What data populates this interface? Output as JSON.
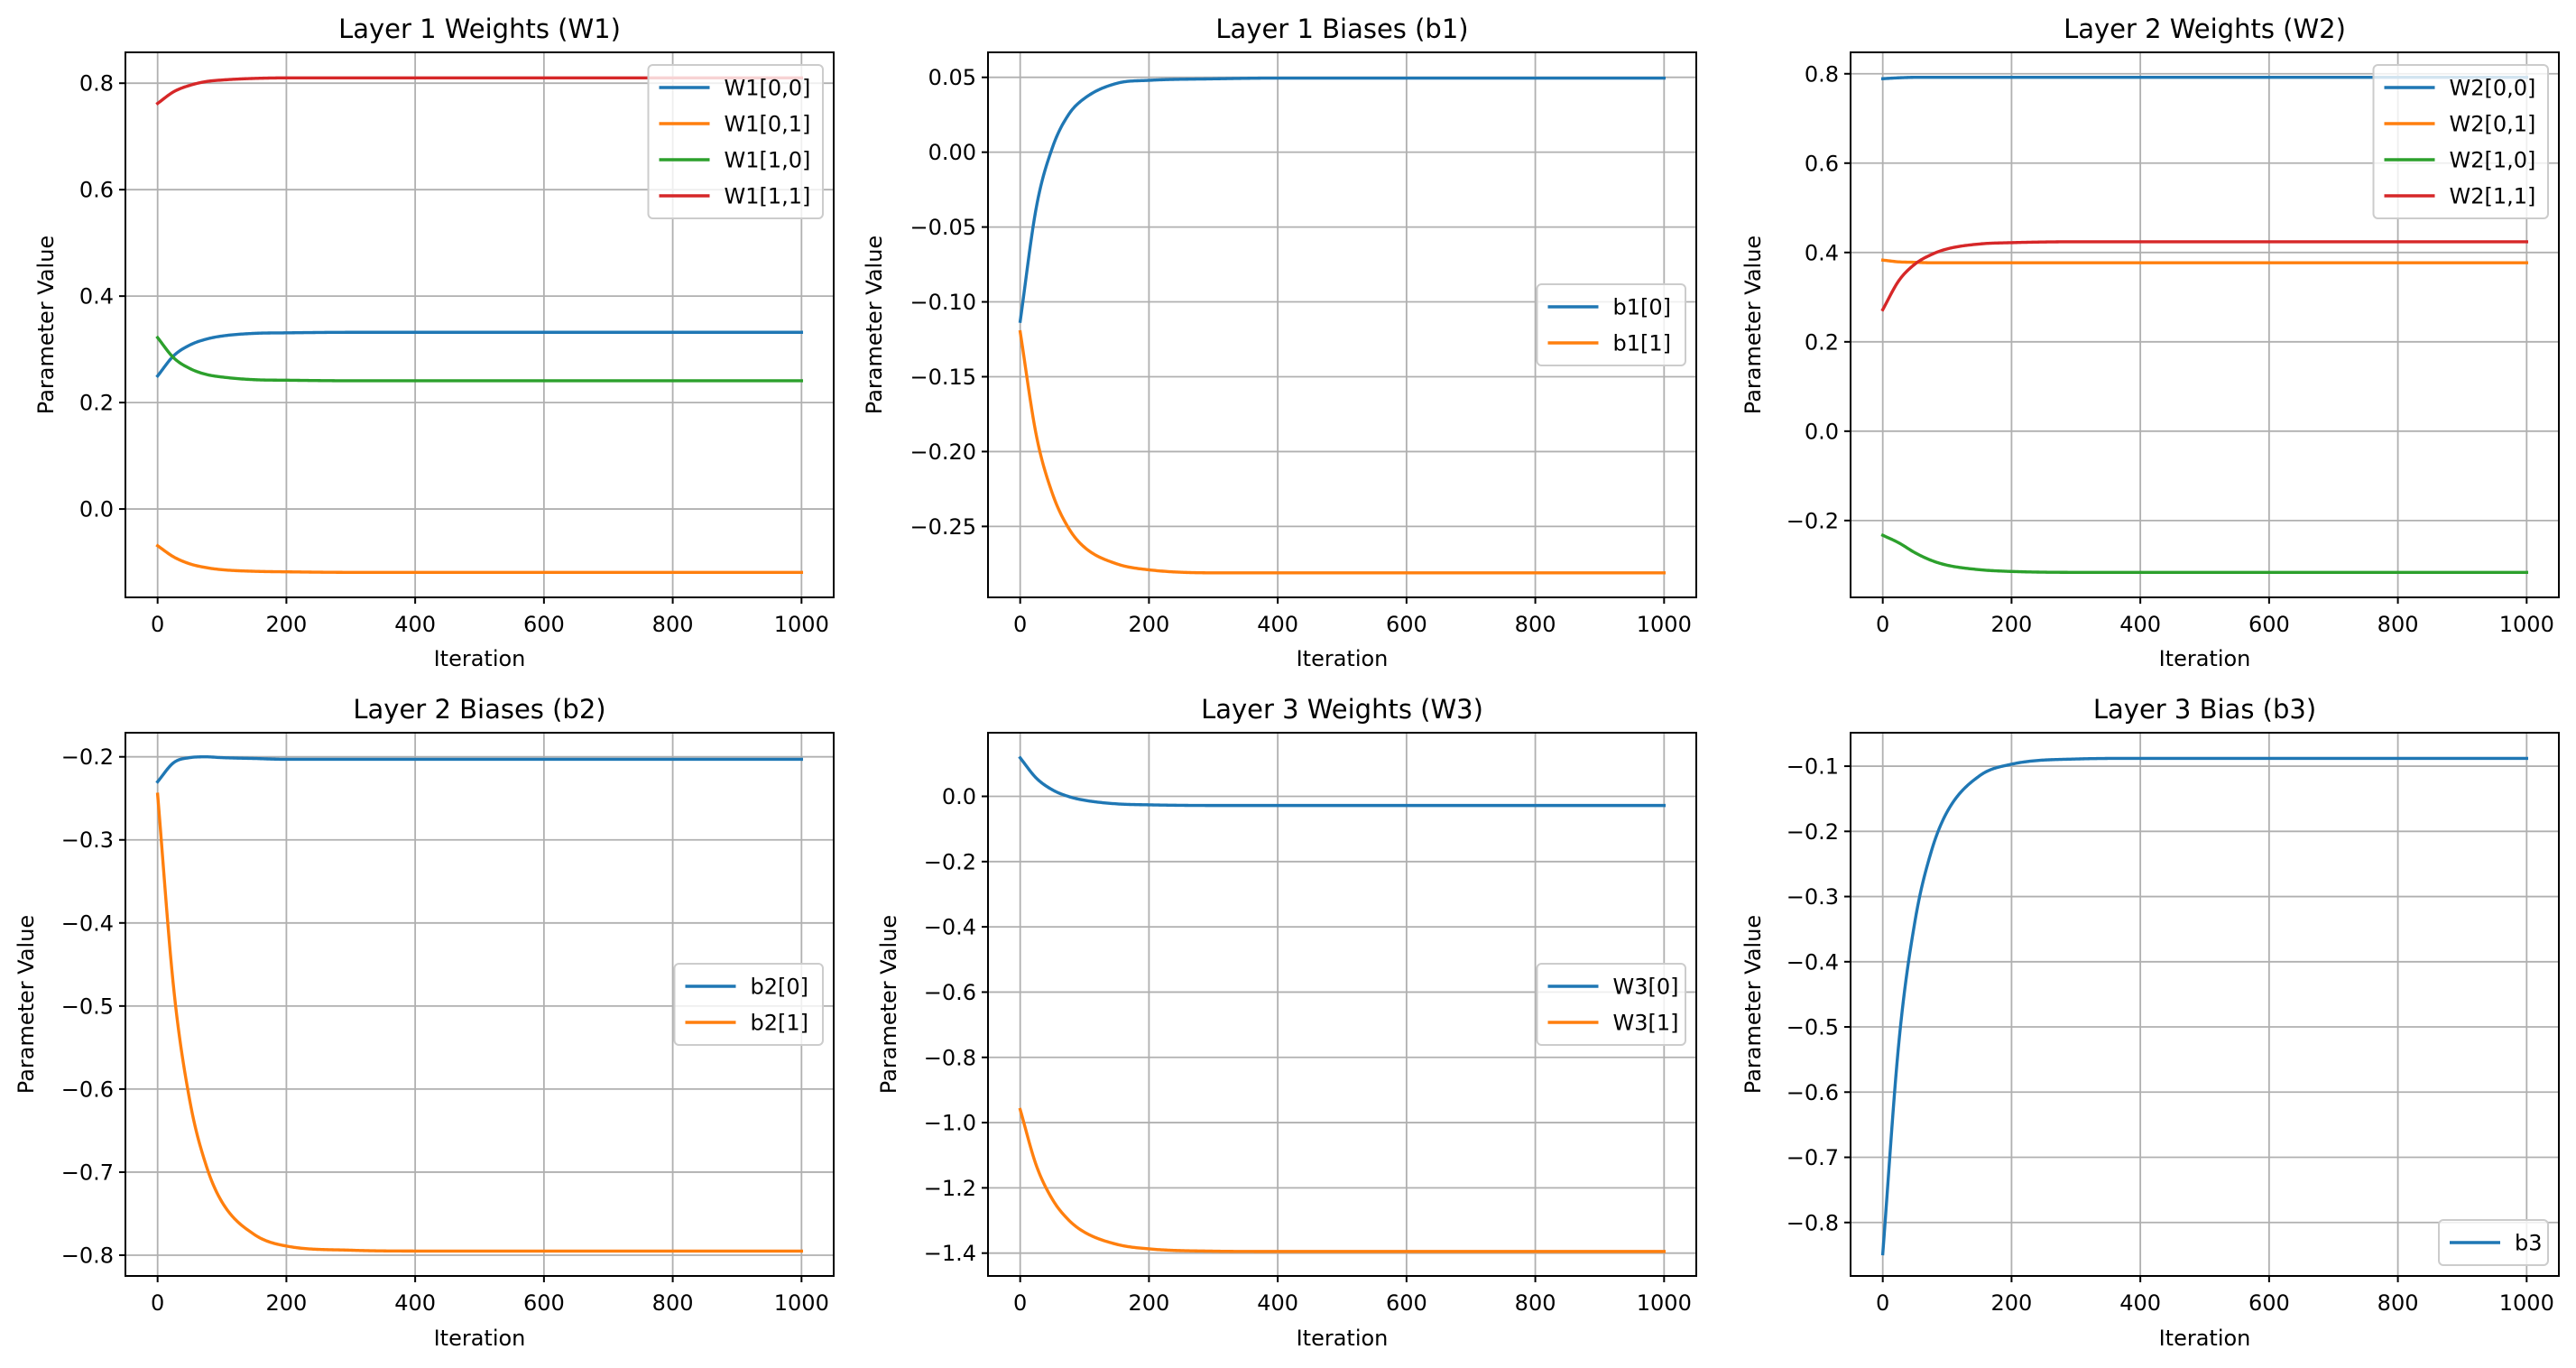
{
  "chart_data": [
    {
      "type": "line",
      "title": "Layer 1 Weights (W1)",
      "xlabel": "Iteration",
      "ylabel": "Parameter Value",
      "xlim": [
        -50,
        1050
      ],
      "ylim": [
        -0.166,
        0.858
      ],
      "xticks": [
        0,
        200,
        400,
        600,
        800,
        1000
      ],
      "xtick_labels": [
        "0",
        "200",
        "400",
        "600",
        "800",
        "1000"
      ],
      "yticks": [
        0.0,
        0.2,
        0.4,
        0.6,
        0.8
      ],
      "ytick_labels": [
        "0.0",
        "0.2",
        "0.4",
        "0.6",
        "0.8"
      ],
      "grid": true,
      "legend_loc": "upper right",
      "x": [
        0,
        25,
        50,
        75,
        100,
        150,
        200,
        300,
        400,
        600,
        800,
        1000
      ],
      "series": [
        {
          "name": "W1[0,0]",
          "color": "#1f77b4",
          "values": [
            0.25,
            0.288,
            0.308,
            0.319,
            0.325,
            0.33,
            0.331,
            0.332,
            0.332,
            0.332,
            0.332,
            0.332
          ]
        },
        {
          "name": "W1[0,1]",
          "color": "#ff7f0e",
          "values": [
            -0.069,
            -0.09,
            -0.103,
            -0.11,
            -0.114,
            -0.117,
            -0.118,
            -0.119,
            -0.119,
            -0.119,
            -0.119,
            -0.119
          ]
        },
        {
          "name": "W1[1,0]",
          "color": "#2ca02c",
          "values": [
            0.322,
            0.284,
            0.264,
            0.253,
            0.248,
            0.243,
            0.242,
            0.241,
            0.241,
            0.241,
            0.241,
            0.241
          ]
        },
        {
          "name": "W1[1,1]",
          "color": "#d62728",
          "values": [
            0.762,
            0.784,
            0.796,
            0.803,
            0.806,
            0.809,
            0.81,
            0.81,
            0.81,
            0.81,
            0.81,
            0.81
          ]
        }
      ]
    },
    {
      "type": "line",
      "title": "Layer 1 Biases (b1)",
      "xlabel": "Iteration",
      "ylabel": "Parameter Value",
      "xlim": [
        -50,
        1050
      ],
      "ylim": [
        -0.2974,
        0.0667
      ],
      "xticks": [
        0,
        200,
        400,
        600,
        800,
        1000
      ],
      "xtick_labels": [
        "0",
        "200",
        "400",
        "600",
        "800",
        "1000"
      ],
      "yticks": [
        -0.25,
        -0.2,
        -0.15,
        -0.1,
        -0.05,
        0.0,
        0.05
      ],
      "ytick_labels": [
        "−0.25",
        "−0.20",
        "−0.15",
        "−0.10",
        "−0.05",
        "0.00",
        "0.05"
      ],
      "grid": true,
      "legend_loc": "center right",
      "x": [
        0,
        25,
        50,
        75,
        100,
        150,
        200,
        300,
        400,
        600,
        800,
        1000
      ],
      "series": [
        {
          "name": "b1[0]",
          "color": "#1f77b4",
          "values": [
            -0.113,
            -0.037,
            0.003,
            0.025,
            0.036,
            0.046,
            0.048,
            0.049,
            0.0495,
            0.0495,
            0.0495,
            0.0495
          ]
        },
        {
          "name": "b1[1]",
          "color": "#ff7f0e",
          "values": [
            -0.12,
            -0.189,
            -0.228,
            -0.251,
            -0.264,
            -0.275,
            -0.279,
            -0.281,
            -0.281,
            -0.281,
            -0.281,
            -0.281
          ]
        }
      ]
    },
    {
      "type": "line",
      "title": "Layer 2 Weights (W2)",
      "xlabel": "Iteration",
      "ylabel": "Parameter Value",
      "xlim": [
        -50,
        1050
      ],
      "ylim": [
        -0.372,
        0.848
      ],
      "xticks": [
        0,
        200,
        400,
        600,
        800,
        1000
      ],
      "xtick_labels": [
        "0",
        "200",
        "400",
        "600",
        "800",
        "1000"
      ],
      "yticks": [
        -0.2,
        0.0,
        0.2,
        0.4,
        0.6,
        0.8
      ],
      "ytick_labels": [
        "−0.2",
        "0.0",
        "0.2",
        "0.4",
        "0.6",
        "0.8"
      ],
      "grid": true,
      "legend_loc": "upper right",
      "x": [
        0,
        25,
        50,
        75,
        100,
        150,
        200,
        300,
        400,
        600,
        800,
        1000
      ],
      "series": [
        {
          "name": "W2[0,0]",
          "color": "#1f77b4",
          "values": [
            0.789,
            0.791,
            0.792,
            0.792,
            0.792,
            0.792,
            0.792,
            0.792,
            0.792,
            0.792,
            0.792,
            0.792
          ]
        },
        {
          "name": "W2[0,1]",
          "color": "#ff7f0e",
          "values": [
            0.383,
            0.379,
            0.378,
            0.377,
            0.377,
            0.377,
            0.377,
            0.377,
            0.377,
            0.377,
            0.377,
            0.377
          ]
        },
        {
          "name": "W2[1,0]",
          "color": "#2ca02c",
          "values": [
            -0.233,
            -0.25,
            -0.272,
            -0.289,
            -0.3,
            -0.31,
            -0.314,
            -0.316,
            -0.316,
            -0.316,
            -0.316,
            -0.316
          ]
        },
        {
          "name": "W2[1,1]",
          "color": "#d62728",
          "values": [
            0.272,
            0.337,
            0.374,
            0.395,
            0.408,
            0.419,
            0.422,
            0.424,
            0.424,
            0.424,
            0.424,
            0.424
          ]
        }
      ]
    },
    {
      "type": "line",
      "title": "Layer 2 Biases (b2)",
      "xlabel": "Iteration",
      "ylabel": "Parameter Value",
      "xlim": [
        -50,
        1050
      ],
      "ylim": [
        -0.825,
        -0.171
      ],
      "xticks": [
        0,
        200,
        400,
        600,
        800,
        1000
      ],
      "xtick_labels": [
        "0",
        "200",
        "400",
        "600",
        "800",
        "1000"
      ],
      "yticks": [
        -0.8,
        -0.7,
        -0.6,
        -0.5,
        -0.4,
        -0.3,
        -0.2
      ],
      "ytick_labels": [
        "−0.8",
        "−0.7",
        "−0.6",
        "−0.5",
        "−0.4",
        "−0.3",
        "−0.2"
      ],
      "grid": true,
      "legend_loc": "center right",
      "x": [
        0,
        25,
        50,
        75,
        100,
        150,
        200,
        300,
        400,
        600,
        800,
        1000
      ],
      "series": [
        {
          "name": "b2[0]",
          "color": "#1f77b4",
          "values": [
            -0.23,
            -0.207,
            -0.201,
            -0.2,
            -0.201,
            -0.202,
            -0.203,
            -0.203,
            -0.203,
            -0.203,
            -0.203,
            -0.203
          ]
        },
        {
          "name": "b2[1]",
          "color": "#ff7f0e",
          "values": [
            -0.245,
            -0.479,
            -0.614,
            -0.691,
            -0.736,
            -0.775,
            -0.789,
            -0.794,
            -0.795,
            -0.795,
            -0.795,
            -0.795
          ]
        }
      ]
    },
    {
      "type": "line",
      "title": "Layer 3 Weights (W3)",
      "xlabel": "Iteration",
      "ylabel": "Parameter Value",
      "xlim": [
        -50,
        1050
      ],
      "ylim": [
        -1.47,
        0.195
      ],
      "xticks": [
        0,
        200,
        400,
        600,
        800,
        1000
      ],
      "xtick_labels": [
        "0",
        "200",
        "400",
        "600",
        "800",
        "1000"
      ],
      "yticks": [
        -1.4,
        -1.2,
        -1.0,
        -0.8,
        -0.6,
        -0.4,
        -0.2,
        0.0
      ],
      "ytick_labels": [
        "−1.4",
        "−1.2",
        "−1.0",
        "−0.8",
        "−0.6",
        "−0.4",
        "−0.2",
        "0.0"
      ],
      "grid": true,
      "legend_loc": "center right",
      "x": [
        0,
        25,
        50,
        75,
        100,
        150,
        200,
        300,
        400,
        600,
        800,
        1000
      ],
      "series": [
        {
          "name": "W3[0]",
          "color": "#1f77b4",
          "values": [
            0.118,
            0.056,
            0.02,
            -0.0004,
            -0.012,
            -0.023,
            -0.026,
            -0.028,
            -0.028,
            -0.028,
            -0.028,
            -0.028
          ]
        },
        {
          "name": "W3[1]",
          "color": "#ff7f0e",
          "values": [
            -0.96,
            -1.131,
            -1.235,
            -1.298,
            -1.336,
            -1.373,
            -1.387,
            -1.394,
            -1.395,
            -1.395,
            -1.395,
            -1.395
          ]
        }
      ]
    },
    {
      "type": "line",
      "title": "Layer 3 Bias (b3)",
      "xlabel": "Iteration",
      "ylabel": "Parameter Value",
      "xlim": [
        -50,
        1050
      ],
      "ylim": [
        -0.882,
        -0.0487
      ],
      "xticks": [
        0,
        200,
        400,
        600,
        800,
        1000
      ],
      "xtick_labels": [
        "0",
        "200",
        "400",
        "600",
        "800",
        "1000"
      ],
      "yticks": [
        -0.8,
        -0.7,
        -0.6,
        -0.5,
        -0.4,
        -0.3,
        -0.2,
        -0.1
      ],
      "ytick_labels": [
        "−0.8",
        "−0.7",
        "−0.6",
        "−0.5",
        "−0.4",
        "−0.3",
        "−0.2",
        "−0.1"
      ],
      "grid": true,
      "legend_loc": "lower right",
      "x": [
        0,
        25,
        50,
        75,
        100,
        150,
        200,
        300,
        400,
        600,
        800,
        1000
      ],
      "series": [
        {
          "name": "b3",
          "color": "#1f77b4",
          "values": [
            -0.848,
            -0.524,
            -0.338,
            -0.232,
            -0.17,
            -0.115,
            -0.097,
            -0.089,
            -0.088,
            -0.088,
            -0.088,
            -0.088
          ]
        }
      ]
    }
  ]
}
